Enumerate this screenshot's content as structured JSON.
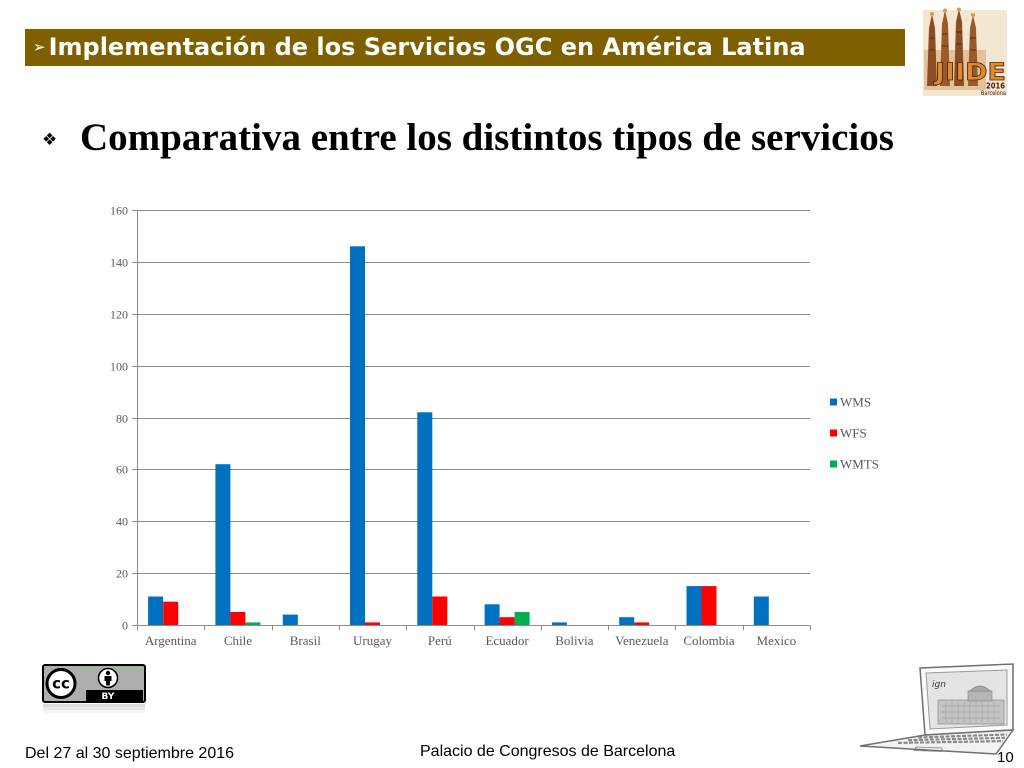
{
  "banner": {
    "arrow": "➢",
    "title": "Implementación de los Servicios OGC en América Latina",
    "background": "#7f6000"
  },
  "event_logo": {
    "icon": "jiide-2016-logo",
    "name": "JIIDE",
    "year": "2016",
    "city": "Barcelona"
  },
  "heading": {
    "bullet": "❖",
    "text": "Comparativa entre los distintos tipos de servicios"
  },
  "chart_data": {
    "type": "bar",
    "categories": [
      "Argentina",
      "Chile",
      "Brasil",
      "Urugay",
      "Perú",
      "Ecuador",
      "Bolivia",
      "Venezuela",
      "Colombia",
      "Mexico"
    ],
    "series": [
      {
        "name": "WMS",
        "color": "#0070c0",
        "values": [
          11,
          62,
          4,
          146,
          82,
          8,
          1,
          3,
          15,
          11
        ]
      },
      {
        "name": "WFS",
        "color": "#ff0000",
        "values": [
          9,
          5,
          0,
          1,
          11,
          3,
          0,
          1,
          15,
          0
        ]
      },
      {
        "name": "WMTS",
        "color": "#00b050",
        "values": [
          0,
          1,
          0,
          0,
          0,
          5,
          0,
          0,
          0,
          0
        ]
      }
    ],
    "ylim": [
      0,
      160
    ],
    "yticks": [
      0,
      20,
      40,
      60,
      80,
      100,
      120,
      140,
      160
    ],
    "grid": true,
    "legend": "right"
  },
  "license_badge": {
    "icon": "cc-by-license-icon",
    "cc_text": "cc",
    "by_text": "BY"
  },
  "laptop_illustration": {
    "icon": "laptop-icon",
    "screen_logo_text": "ign"
  },
  "footer": {
    "dates": "Del 27 al 30 septiembre 2016",
    "venue": "Palacio de Congresos de Barcelona",
    "page_number": "10"
  }
}
